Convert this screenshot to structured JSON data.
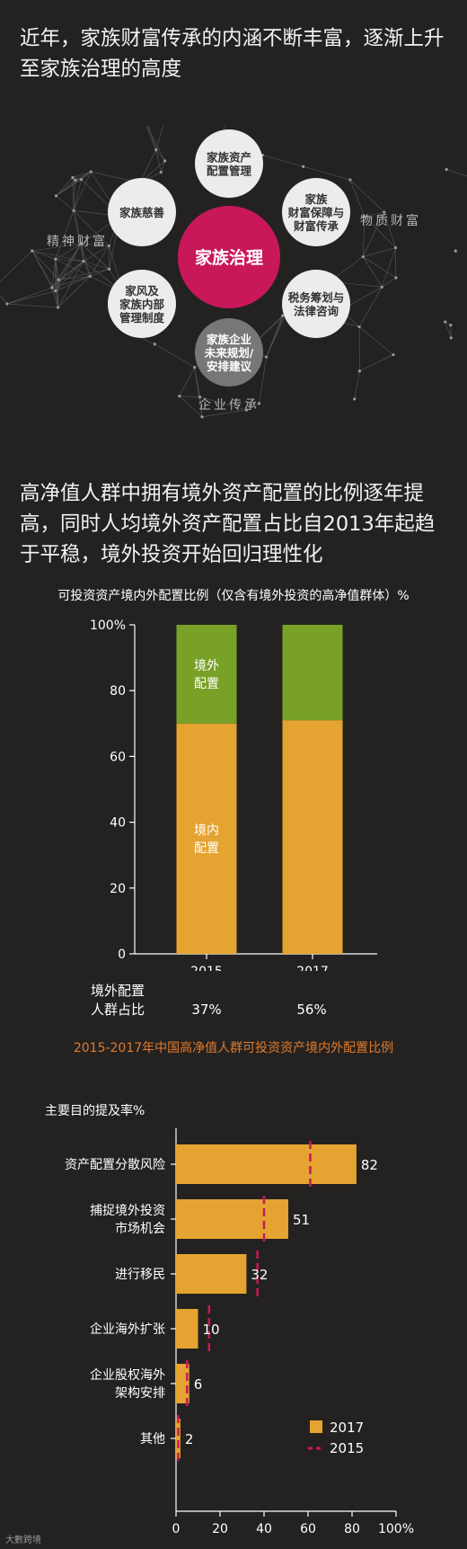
{
  "section1": {
    "heading": "近年，家族财富传承的内涵不断丰富，逐渐上升至家族治理的高度"
  },
  "diagram": {
    "center": "家族治理",
    "nodes": [
      {
        "text": [
          "家族资产",
          "配置管理"
        ]
      },
      {
        "text": [
          "家族",
          "财富保障与",
          "财富传承"
        ]
      },
      {
        "text": [
          "税务筹划与",
          "法律咨询"
        ]
      },
      {
        "text": [
          "家族企业",
          "未来规划/",
          "安排建议"
        ]
      },
      {
        "text": [
          "家风及",
          "家族内部",
          "管理制度"
        ]
      },
      {
        "text": [
          "家族慈善"
        ]
      }
    ],
    "labels": {
      "left": "精神财富",
      "right": "物质财富",
      "bottom": "企业传承"
    },
    "colors": {
      "center": "#c8185a",
      "node": "#ececec",
      "node_dark": "#777777"
    }
  },
  "section2": {
    "heading": "高净值人群中拥有境外资产配置的比例逐年提高，同时人均境外资产配置占比自2013年起趋于平稳，境外投资开始回归理性化"
  },
  "chart_data": [
    {
      "type": "bar",
      "stacked": true,
      "title": "可投资资产境内外配置比例（仅含有境外投资的高净值群体）%",
      "categories": [
        "2015",
        "2017"
      ],
      "series": [
        {
          "name": "境内配置",
          "values": [
            70,
            71
          ],
          "color": "#e5a431"
        },
        {
          "name": "境外配置",
          "values": [
            30,
            29
          ],
          "color": "#7aa127"
        }
      ],
      "yticks": [
        "0",
        "20",
        "40",
        "60",
        "80",
        "100%"
      ],
      "ylim": [
        0,
        100
      ],
      "extra_row": {
        "label": [
          "境外配置",
          "人群占比"
        ],
        "values": [
          "37%",
          "56%"
        ]
      },
      "caption": "2015-2017年中国高净值人群可投资资产境内外配置比例"
    },
    {
      "type": "bar",
      "orientation": "horizontal",
      "title": "主要目的提及率%",
      "categories": [
        [
          "资产配置分散风险"
        ],
        [
          "捕捉境外投资",
          "市场机会"
        ],
        [
          "进行移民"
        ],
        [
          "企业海外扩张"
        ],
        [
          "企业股权海外",
          "架构安排"
        ],
        [
          "其他"
        ]
      ],
      "series": [
        {
          "name": "2017",
          "values": [
            82,
            51,
            32,
            10,
            6,
            2
          ],
          "color": "#e5a431"
        },
        {
          "name": "2015",
          "values": [
            61,
            40,
            37,
            15,
            5,
            1
          ],
          "color": "#c8185a",
          "marker": "dash"
        }
      ],
      "value_labels": [
        "82",
        "51",
        "32",
        "10",
        "6",
        "2"
      ],
      "xticks": [
        "0",
        "20",
        "40",
        "60",
        "80",
        "100%"
      ],
      "xlim": [
        0,
        100
      ],
      "legend": "bottom-right"
    }
  ],
  "watermark": "大數跨境"
}
